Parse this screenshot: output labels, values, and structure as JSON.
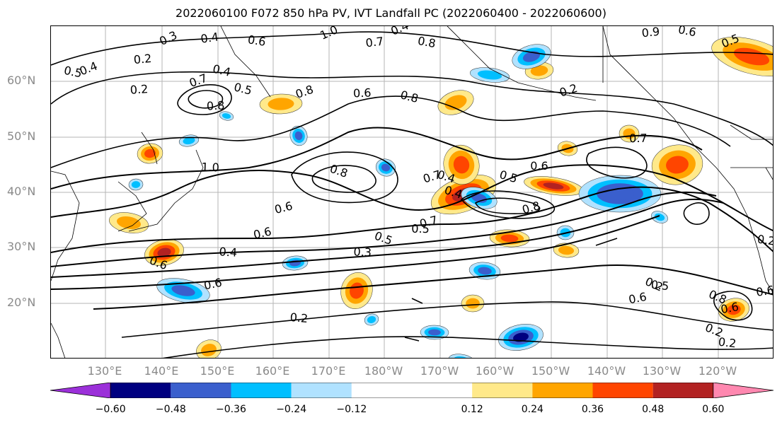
{
  "title": "2022060100 F072 850 hPa PV, IVT Landfall PC (2022060400 - 2022060600)",
  "map": {
    "region": "North Pacific",
    "lon_range": [
      "120°E",
      "110°W"
    ],
    "lat_range": [
      "10°N",
      "70°N"
    ],
    "gridlines": true,
    "lat_labels": [
      "60°N",
      "50°N",
      "40°N",
      "30°N",
      "20°N"
    ],
    "lon_labels": [
      "130°E",
      "140°E",
      "150°E",
      "160°E",
      "170°E",
      "180°W",
      "170°W",
      "160°W",
      "150°W",
      "140°W",
      "130°W",
      "120°W"
    ],
    "contour_labels": [
      "0.3",
      "0.4",
      "0.6",
      "1.0",
      "0.7",
      "0.8",
      "0.4",
      "0.9",
      "0.6",
      "0.5",
      "0.2",
      "0.5",
      "0.4",
      "0.2",
      "0.4",
      "0.7",
      "0.8",
      "0.5",
      "0.8",
      "0.6",
      "0.8",
      "0.2",
      "0.7",
      "0.5",
      "0.7",
      "0.6",
      "0.4",
      "0.8",
      "0.5",
      "0.4",
      "0.7",
      "1.0",
      "0.8",
      "0.6",
      "0.3",
      "0.5",
      "0.6",
      "0.4",
      "0.6",
      "0.6",
      "0.2",
      "0.2",
      "0.6",
      "0.5",
      "0.8",
      "0.6",
      "0.2",
      "0.2",
      "0.6",
      "0.2"
    ],
    "contour_variable": "850 hPa PV",
    "shading_variable": "IVT Landfall PC"
  },
  "colorbar": {
    "ticks": [
      "−0.60",
      "−0.48",
      "−0.36",
      "−0.24",
      "−0.12",
      "0.12",
      "0.24",
      "0.36",
      "0.48",
      "0.60"
    ],
    "boundaries": [
      -0.72,
      -0.6,
      -0.48,
      -0.36,
      -0.24,
      -0.12,
      0.12,
      0.24,
      0.36,
      0.48,
      0.6,
      0.72
    ],
    "colors": [
      "#9b30d9",
      "#000080",
      "#3a5fcd",
      "#00bfff",
      "#b0e2ff",
      "#ffffff",
      "#ffe98a",
      "#ffa500",
      "#ff4500",
      "#b22222",
      "#ff88b0"
    ],
    "extend": "both"
  }
}
